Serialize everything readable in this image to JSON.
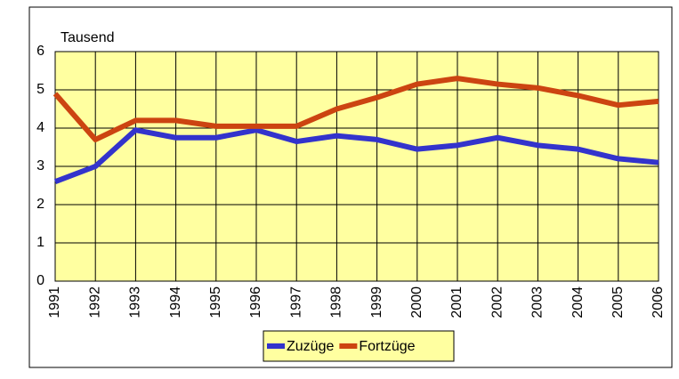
{
  "chart_data": {
    "type": "line",
    "y_label": "Tausend",
    "categories": [
      "1991",
      "1992",
      "1993",
      "1994",
      "1995",
      "1996",
      "1997",
      "1998",
      "1999",
      "2000",
      "2001",
      "2002",
      "2003",
      "2004",
      "2005",
      "2006"
    ],
    "series": [
      {
        "name": "Zuzüge",
        "color": "#3333cc",
        "values": [
          2.6,
          3.0,
          3.95,
          3.75,
          3.75,
          3.95,
          3.65,
          3.8,
          3.7,
          3.45,
          3.55,
          3.75,
          3.55,
          3.45,
          3.2,
          3.1
        ]
      },
      {
        "name": "Fortzüge",
        "color": "#cc4411",
        "values": [
          4.9,
          3.7,
          4.2,
          4.2,
          4.05,
          4.05,
          4.05,
          4.5,
          4.8,
          5.15,
          5.3,
          5.15,
          5.05,
          4.85,
          4.6,
          4.7
        ]
      }
    ],
    "ylim": [
      0,
      6
    ],
    "yticks": [
      0,
      1,
      2,
      3,
      4,
      5,
      6
    ],
    "grid": true,
    "legend": "bottom",
    "plot_background": "#ffffa0"
  }
}
